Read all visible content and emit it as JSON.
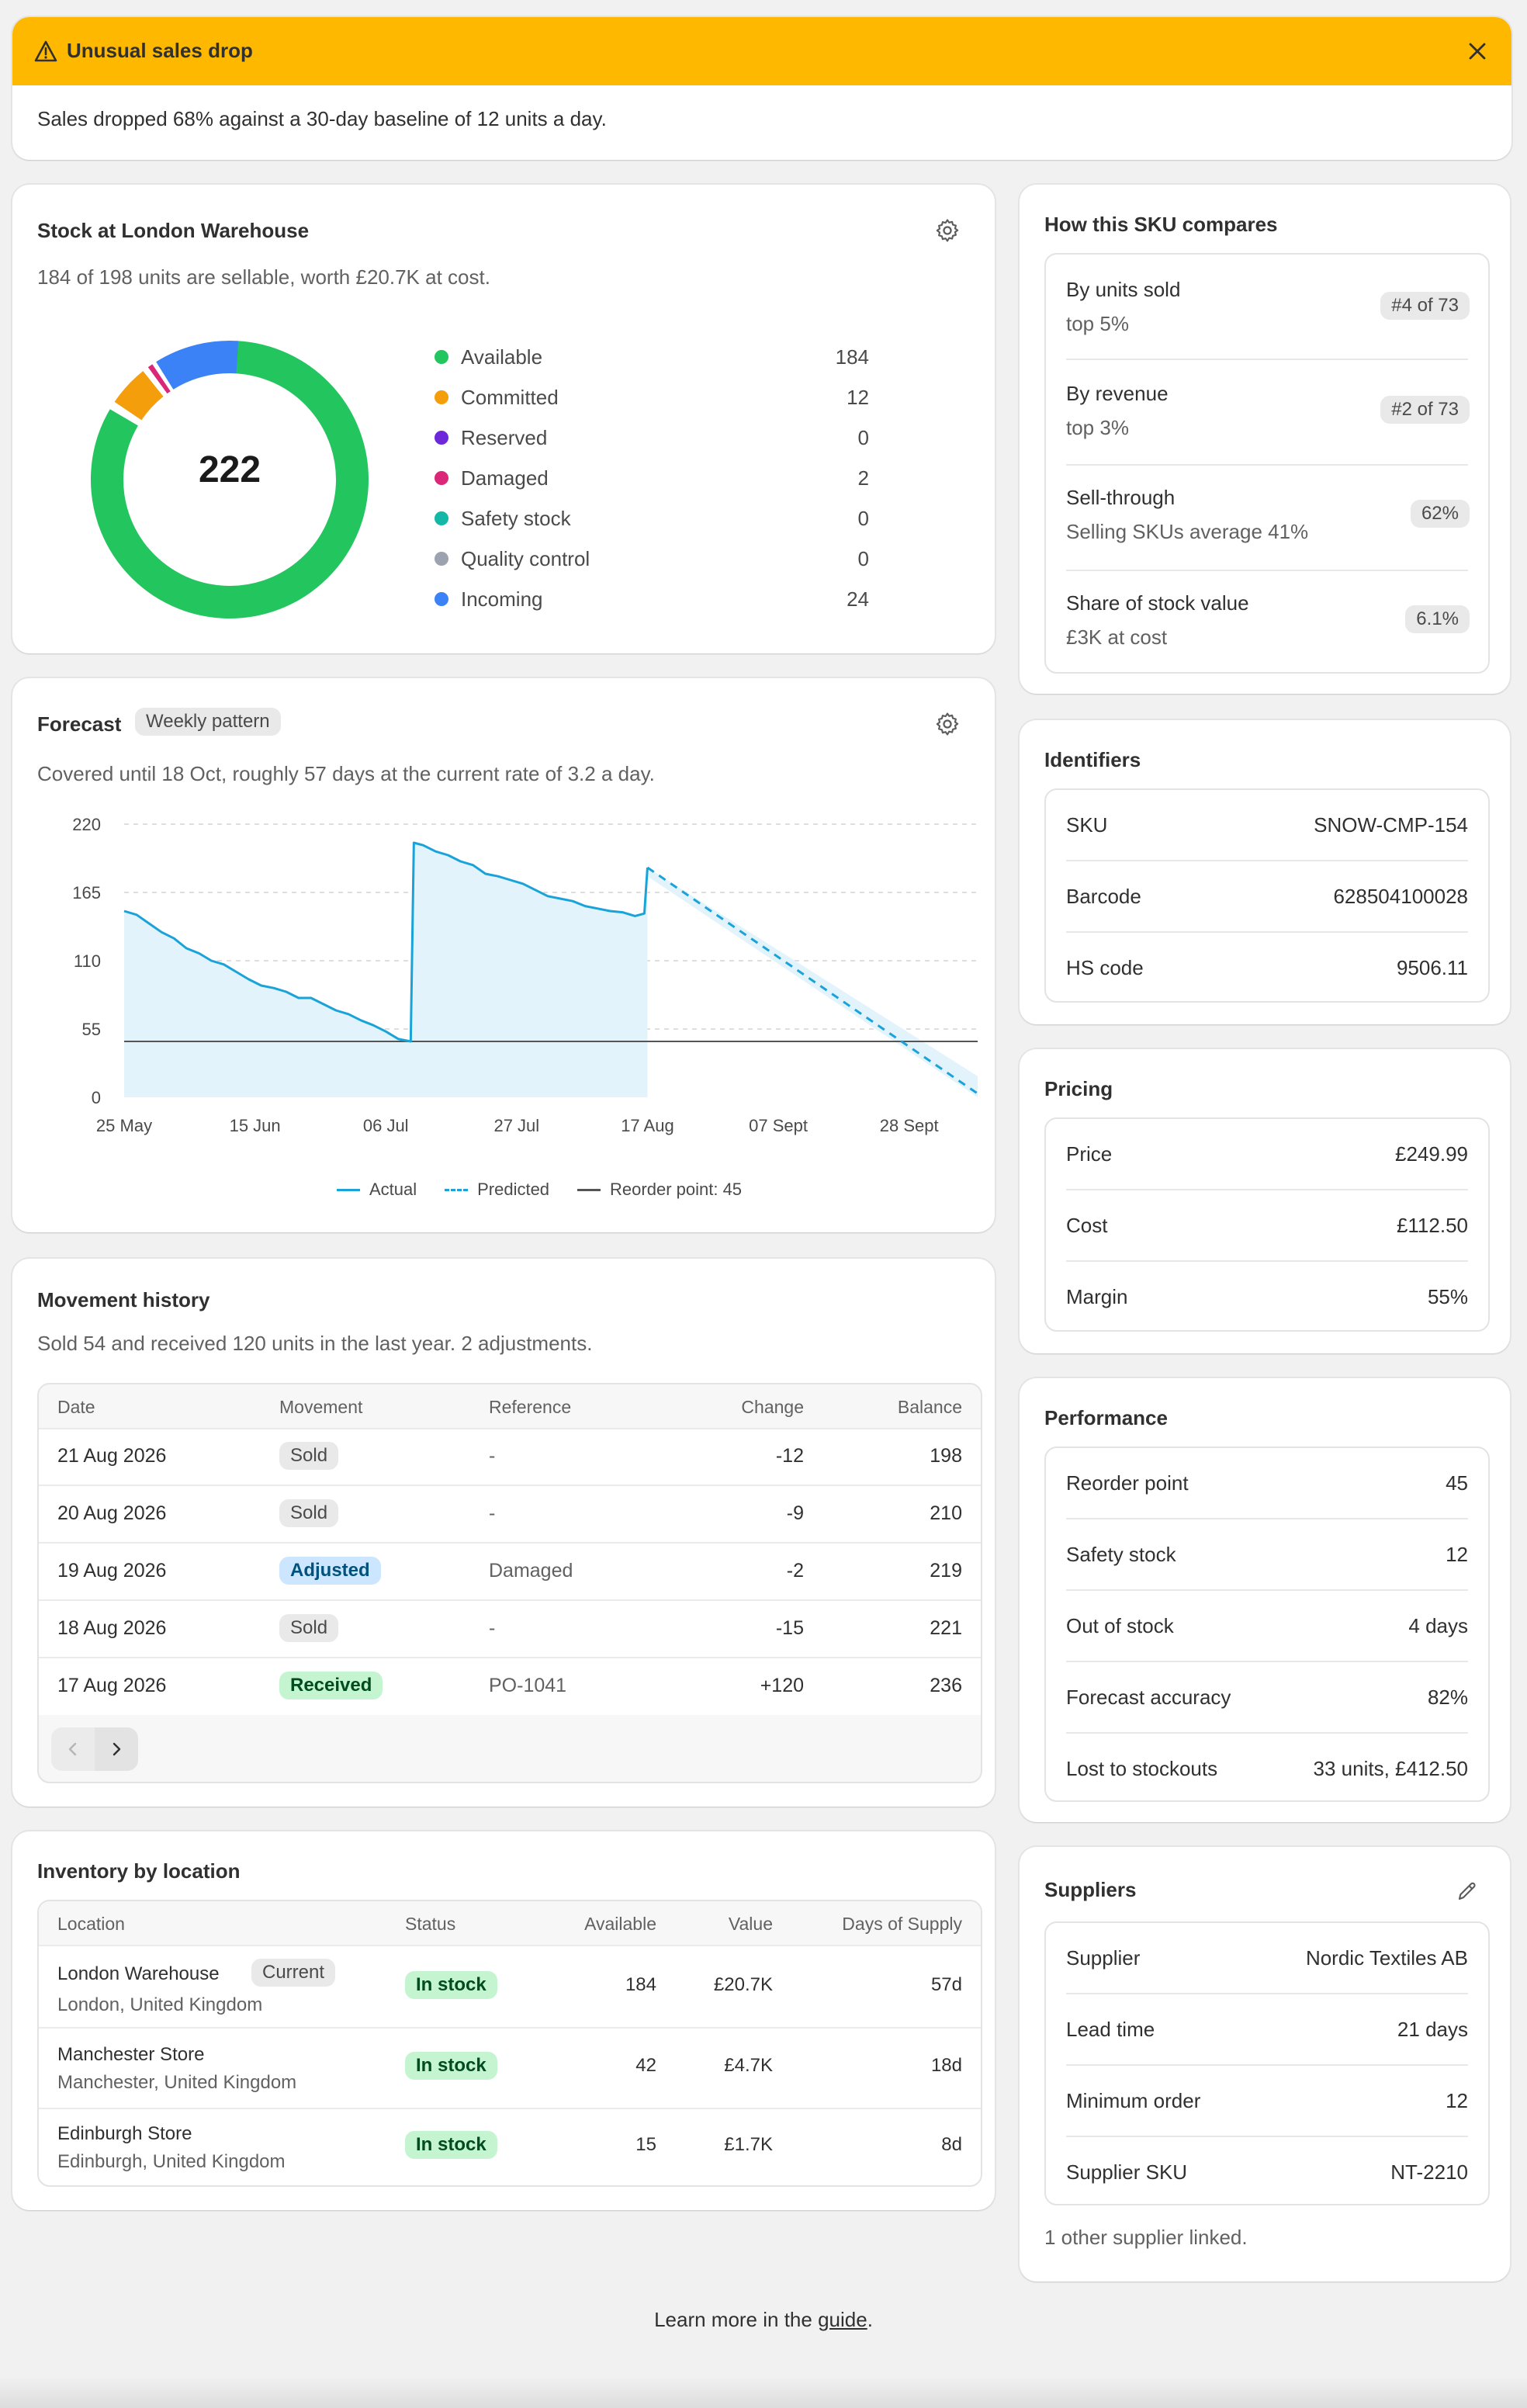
{
  "alert": {
    "title": "Unusual sales drop",
    "message": "Sales dropped 68% against a 30-day baseline of 12 units a day."
  },
  "stock": {
    "title": "Stock at London Warehouse",
    "subtitle": "184 of 198 units are sellable, worth £20.7K at cost.",
    "total": "222",
    "items": [
      {
        "label": "Available",
        "value": "184",
        "color": "#22c55e"
      },
      {
        "label": "Committed",
        "value": "12",
        "color": "#f59e0b"
      },
      {
        "label": "Reserved",
        "value": "0",
        "color": "#6d28d9"
      },
      {
        "label": "Damaged",
        "value": "2",
        "color": "#db2777"
      },
      {
        "label": "Safety stock",
        "value": "0",
        "color": "#14b8a6"
      },
      {
        "label": "Quality control",
        "value": "0",
        "color": "#9ca3af"
      },
      {
        "label": "Incoming",
        "value": "24",
        "color": "#3b82f6"
      }
    ]
  },
  "forecast": {
    "title": "Forecast",
    "badge": "Weekly pattern",
    "subtitle": "Covered until 18 Oct, roughly 57 days at the current rate of 3.2 a day.",
    "legend": {
      "actual": "Actual",
      "predicted": "Predicted",
      "reorder": "Reorder point: 45"
    }
  },
  "chart_data": {
    "type": "line",
    "x_tick_labels": [
      "25 May",
      "15 Jun",
      "06 Jul",
      "27 Jul",
      "17 Aug",
      "07 Sept",
      "28 Sept"
    ],
    "y_tick_labels": [
      "0",
      "55",
      "110",
      "165",
      "220"
    ],
    "ylim": [
      0,
      220
    ],
    "xlim_days": [
      0,
      137
    ],
    "reorder_point": 45,
    "colors": {
      "actual": "#1aa3d9",
      "fill": "#e3f3fc",
      "reorder": "#555555"
    },
    "series": [
      {
        "name": "Actual",
        "x": [
          0,
          2,
          4,
          6,
          8,
          10,
          12,
          14,
          16,
          18,
          20,
          22,
          24,
          26,
          28,
          30,
          32,
          34,
          36,
          38,
          40,
          42,
          44,
          46,
          46.5,
          48,
          50,
          52,
          54,
          56,
          58,
          60,
          62,
          64,
          66,
          68,
          70,
          72,
          74,
          76,
          78,
          80,
          82,
          83.5,
          84
        ],
        "y": [
          150,
          147,
          140,
          133,
          128,
          120,
          116,
          110,
          107,
          101,
          95,
          90,
          88,
          85,
          80,
          80,
          75,
          70,
          67,
          62,
          58,
          53,
          47,
          45,
          205,
          203,
          198,
          195,
          190,
          187,
          180,
          178,
          175,
          172,
          167,
          162,
          160,
          158,
          154,
          152,
          150,
          149,
          146,
          148,
          185
        ]
      },
      {
        "name": "Predicted",
        "x": [
          84,
          137
        ],
        "y": [
          185,
          3
        ]
      }
    ],
    "band": {
      "x": [
        84,
        137
      ],
      "upper": [
        185,
        17
      ],
      "lower": [
        178,
        0
      ]
    }
  },
  "movement": {
    "title": "Movement history",
    "subtitle": "Sold 54 and received 120 units in the last year. 2 adjustments.",
    "headers": [
      "Date",
      "Movement",
      "Reference",
      "Change",
      "Balance"
    ],
    "rows": [
      {
        "date": "21 Aug 2026",
        "movement": "Sold",
        "type": "grey",
        "reference": "-",
        "change": "-12",
        "balance": "198"
      },
      {
        "date": "20 Aug 2026",
        "movement": "Sold",
        "type": "grey",
        "reference": "-",
        "change": "-9",
        "balance": "210"
      },
      {
        "date": "19 Aug 2026",
        "movement": "Adjusted",
        "type": "blue",
        "reference": "Damaged",
        "change": "-2",
        "balance": "219"
      },
      {
        "date": "18 Aug 2026",
        "movement": "Sold",
        "type": "grey",
        "reference": "-",
        "change": "-15",
        "balance": "221"
      },
      {
        "date": "17 Aug 2026",
        "movement": "Received",
        "type": "green",
        "reference": "PO-1041",
        "change": "+120",
        "balance": "236"
      }
    ]
  },
  "locations": {
    "title": "Inventory by location",
    "headers": [
      "Location",
      "Status",
      "Available",
      "Value",
      "Days of Supply"
    ],
    "rows": [
      {
        "name": "London Warehouse",
        "badge": "Current",
        "sub": "London, United Kingdom",
        "status": "In stock",
        "available": "184",
        "value": "£20.7K",
        "days": "57d"
      },
      {
        "name": "Manchester Store",
        "badge": "",
        "sub": "Manchester, United Kingdom",
        "status": "In stock",
        "available": "42",
        "value": "£4.7K",
        "days": "18d"
      },
      {
        "name": "Edinburgh Store",
        "badge": "",
        "sub": "Edinburgh, United Kingdom",
        "status": "In stock",
        "available": "15",
        "value": "£1.7K",
        "days": "8d"
      }
    ]
  },
  "compare": {
    "title": "How this SKU compares",
    "rows": [
      {
        "label": "By units sold",
        "sub": "top 5%",
        "badge": "#4 of 73"
      },
      {
        "label": "By revenue",
        "sub": "top 3%",
        "badge": "#2 of 73"
      },
      {
        "label": "Sell-through",
        "sub": "Selling SKUs average 41%",
        "badge": "62%"
      },
      {
        "label": "Share of stock value",
        "sub": "£3K at cost",
        "badge": "6.1%"
      }
    ]
  },
  "identifiers": {
    "title": "Identifiers",
    "rows": [
      {
        "label": "SKU",
        "value": "SNOW-CMP-154"
      },
      {
        "label": "Barcode",
        "value": "628504100028"
      },
      {
        "label": "HS code",
        "value": "9506.11"
      }
    ]
  },
  "pricing": {
    "title": "Pricing",
    "rows": [
      {
        "label": "Price",
        "value": "£249.99"
      },
      {
        "label": "Cost",
        "value": "£112.50"
      },
      {
        "label": "Margin",
        "value": "55%"
      }
    ]
  },
  "performance": {
    "title": "Performance",
    "rows": [
      {
        "label": "Reorder point",
        "value": "45"
      },
      {
        "label": "Safety stock",
        "value": "12"
      },
      {
        "label": "Out of stock",
        "value": "4 days"
      },
      {
        "label": "Forecast accuracy",
        "value": "82%"
      },
      {
        "label": "Lost to stockouts",
        "value": "33 units, £412.50"
      }
    ]
  },
  "suppliers": {
    "title": "Suppliers",
    "rows": [
      {
        "label": "Supplier",
        "value": "Nordic Textiles AB"
      },
      {
        "label": "Lead time",
        "value": "21 days"
      },
      {
        "label": "Minimum order",
        "value": "12"
      },
      {
        "label": "Supplier SKU",
        "value": "NT-2210"
      }
    ],
    "footer": "1 other supplier linked."
  },
  "footer": {
    "prefix": "Learn more in the ",
    "link": "guide",
    "suffix": "."
  }
}
